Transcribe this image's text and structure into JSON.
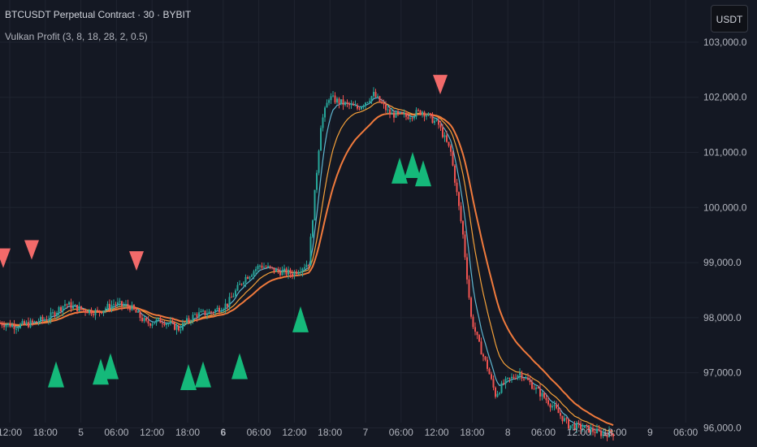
{
  "header": {
    "symbol_title": "BTCUSDT Perpetual Contract · 30 · BYBIT",
    "indicator_title": "Vulkan Profit (3, 8, 18, 28, 2, 0.5)",
    "currency_button": "USDT"
  },
  "colors": {
    "background": "#141823",
    "grid": "#1f2430",
    "candle_up": "#26a69a",
    "candle_down": "#ef5350",
    "ma_fast": "#5fb6d0",
    "ma_mid": "#f5a13a",
    "ma_slow": "#f07a3c",
    "signal_buy": "#15b97a",
    "signal_sell": "#f26a6a",
    "axis_text": "#b2b5be"
  },
  "chart_data": {
    "type": "candlestick",
    "title": "BTCUSDT Perpetual Contract · 30 · BYBIT",
    "indicator": "Vulkan Profit (3, 8, 18, 28, 2, 0.5)",
    "ylim": [
      95800,
      103500
    ],
    "y_ticks": [
      "103,000.0",
      "102,000.0",
      "101,000.0",
      "100,000.0",
      "99,000.0",
      "98,000.0",
      "97,000.0",
      "96,000.0"
    ],
    "x_ticks": [
      "12:00",
      "18:00",
      "5",
      "06:00",
      "12:00",
      "18:00",
      "6",
      "06:00",
      "12:00",
      "18:00",
      "7",
      "06:00",
      "12:00",
      "18:00",
      "8",
      "06:00",
      "12:00",
      "18:00",
      "9",
      "06:00"
    ],
    "x_ticks_bold": [
      "6"
    ],
    "approx_close_path": [
      [
        0,
        97900
      ],
      [
        20,
        97850
      ],
      [
        40,
        97900
      ],
      [
        60,
        98000
      ],
      [
        80,
        98250
      ],
      [
        100,
        98150
      ],
      [
        120,
        98100
      ],
      [
        140,
        98250
      ],
      [
        160,
        98200
      ],
      [
        180,
        97900
      ],
      [
        200,
        97950
      ],
      [
        220,
        97800
      ],
      [
        240,
        98050
      ],
      [
        260,
        98100
      ],
      [
        280,
        98250
      ],
      [
        300,
        98700
      ],
      [
        320,
        98950
      ],
      [
        340,
        98850
      ],
      [
        360,
        98800
      ],
      [
        380,
        99000
      ],
      [
        395,
        101500
      ],
      [
        405,
        102000
      ],
      [
        420,
        101900
      ],
      [
        440,
        101800
      ],
      [
        460,
        102050
      ],
      [
        480,
        101700
      ],
      [
        500,
        101650
      ],
      [
        520,
        101750
      ],
      [
        540,
        101500
      ],
      [
        555,
        101000
      ],
      [
        570,
        99500
      ],
      [
        580,
        98000
      ],
      [
        590,
        97500
      ],
      [
        600,
        97100
      ],
      [
        610,
        96600
      ],
      [
        620,
        96800
      ],
      [
        640,
        97000
      ],
      [
        660,
        96700
      ],
      [
        680,
        96400
      ],
      [
        700,
        96050
      ],
      [
        720,
        96000
      ],
      [
        740,
        95900
      ],
      [
        755,
        95900
      ]
    ],
    "moving_averages": [
      {
        "color_key": "ma_fast",
        "period_hint": "short"
      },
      {
        "color_key": "ma_mid",
        "period_hint": "medium"
      },
      {
        "color_key": "ma_slow",
        "period_hint": "long"
      }
    ],
    "sell_signals": [
      {
        "x_slot": 4,
        "price": 99050
      },
      {
        "x_slot": 39,
        "price": 99200
      },
      {
        "x_slot": 168,
        "price": 99000
      },
      {
        "x_slot": 542,
        "price": 102200
      }
    ],
    "buy_signals": [
      {
        "x_slot": 69,
        "price": 97000
      },
      {
        "x_slot": 124,
        "price": 97050
      },
      {
        "x_slot": 136,
        "price": 97150
      },
      {
        "x_slot": 232,
        "price": 96950
      },
      {
        "x_slot": 250,
        "price": 97000
      },
      {
        "x_slot": 295,
        "price": 97150
      },
      {
        "x_slot": 370,
        "price": 98000
      },
      {
        "x_slot": 492,
        "price": 100700
      },
      {
        "x_slot": 508,
        "price": 100800
      },
      {
        "x_slot": 521,
        "price": 100650
      }
    ],
    "grid": true,
    "legend": "none"
  }
}
